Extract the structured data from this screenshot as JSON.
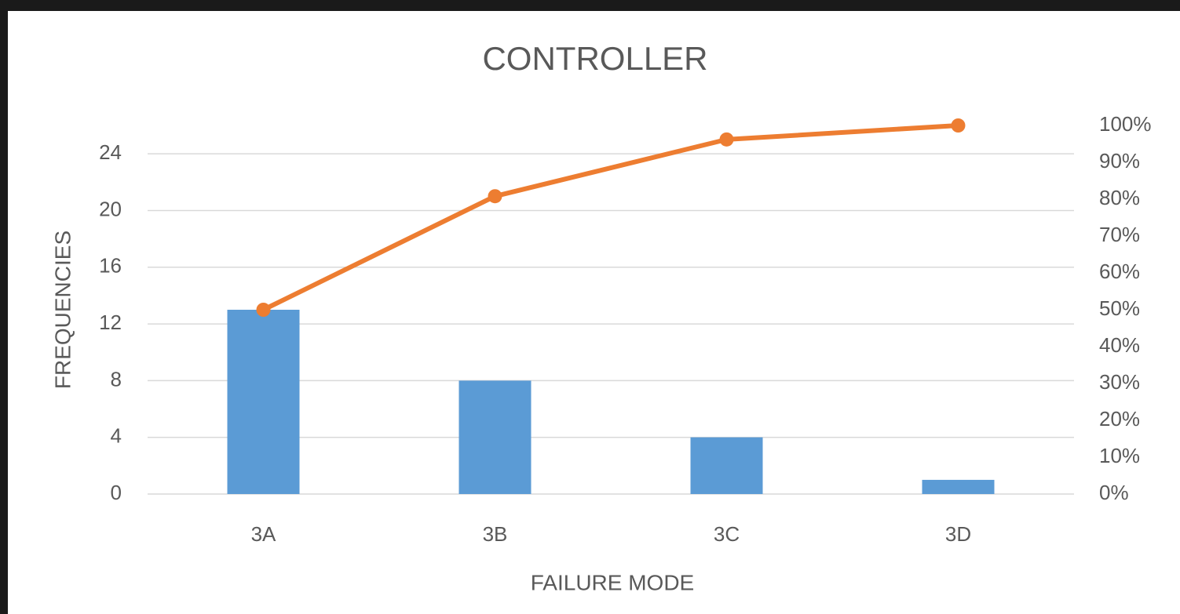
{
  "chart_data": {
    "type": "pareto",
    "title": "CONTROLLER",
    "x_label": "FAILURE MODE",
    "y_label": "FREQUENCIES",
    "categories": [
      "3A",
      "3B",
      "3C",
      "3D"
    ],
    "series": [
      {
        "type": "bar",
        "color": "#5b9bd5",
        "values": [
          13,
          8,
          4,
          1
        ]
      },
      {
        "type": "line",
        "color": "#ed7d31",
        "axis": "y2",
        "values": [
          50,
          80.8,
          96.2,
          100
        ]
      }
    ],
    "ylim": [
      0,
      26
    ],
    "yticks": [
      0,
      4,
      8,
      12,
      16,
      20,
      24
    ],
    "y2lim": [
      0,
      100
    ],
    "y2ticks": [
      {
        "value": 0,
        "label": "0%"
      },
      {
        "value": 10,
        "label": "10%"
      },
      {
        "value": 20,
        "label": "20%"
      },
      {
        "value": 30,
        "label": "30%"
      },
      {
        "value": 40,
        "label": "40%"
      },
      {
        "value": 50,
        "label": "50%"
      },
      {
        "value": 60,
        "label": "60%"
      },
      {
        "value": 70,
        "label": "70%"
      },
      {
        "value": 80,
        "label": "80%"
      },
      {
        "value": 90,
        "label": "90%"
      },
      {
        "value": 100,
        "label": "100%"
      }
    ],
    "grid": true
  }
}
